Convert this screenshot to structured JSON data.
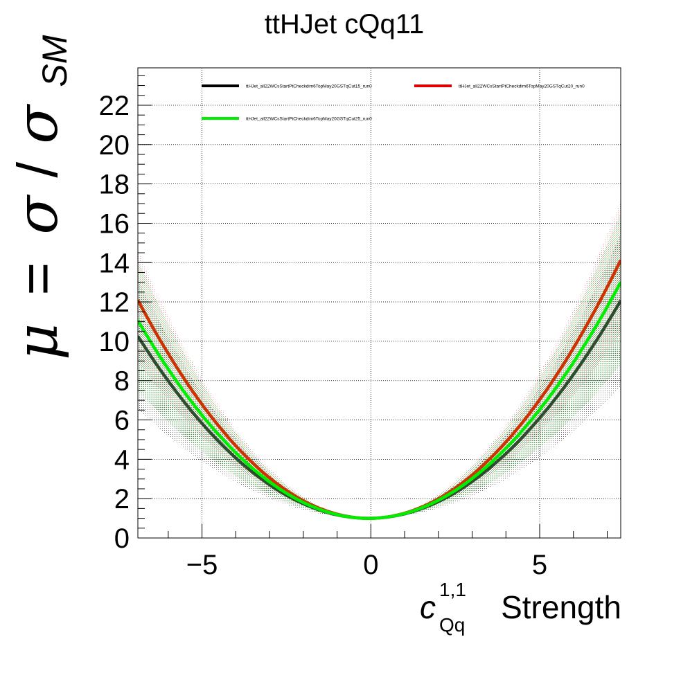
{
  "chart_data": {
    "type": "line",
    "title": "ttHJet cQq11",
    "xlabel": {
      "symbol": "c",
      "superscript": "1,1",
      "subscript": "Qq",
      "text": "Strength"
    },
    "ylabel": {
      "mu": "μ",
      "equals": "=",
      "sigma": "σ",
      "slash": "/",
      "sigma2": "σ",
      "subscript": "SM"
    },
    "xlim": [
      -6.9,
      7.4
    ],
    "ylim": [
      0,
      23.9
    ],
    "x_ticks": [
      {
        "value": -5,
        "label": "−5"
      },
      {
        "value": 0,
        "label": "0"
      },
      {
        "value": 5,
        "label": "5"
      }
    ],
    "y_ticks": [
      {
        "value": 0,
        "label": "0"
      },
      {
        "value": 2,
        "label": "2"
      },
      {
        "value": 4,
        "label": "4"
      },
      {
        "value": 6,
        "label": "6"
      },
      {
        "value": 8,
        "label": "8"
      },
      {
        "value": 10,
        "label": "10"
      },
      {
        "value": 12,
        "label": "12"
      },
      {
        "value": 14,
        "label": "14"
      },
      {
        "value": 16,
        "label": "16"
      },
      {
        "value": 18,
        "label": "18"
      },
      {
        "value": 20,
        "label": "20"
      },
      {
        "value": 22,
        "label": "22"
      }
    ],
    "grid": true,
    "legend_position": "top",
    "series": [
      {
        "name": "ttHJet_all22WCsStartPtCheckdim6TopMay20GSTqCut15_run0",
        "color": "#2e4d2e",
        "band_color": "#000000",
        "coefficients": [
          1.0,
          0.0275,
          0.1985
        ],
        "band_min": [
          1.0,
          0.02,
          0.12
        ],
        "band_max": [
          1.0,
          0.03,
          0.26
        ]
      },
      {
        "name": "ttHJet_all22WCsStartPtCheckdim6TopMay20GSTqCut20_run0",
        "color": "#cc3300",
        "band_color": "#e8a0a8",
        "coefficients": [
          1.0,
          0.024,
          0.2365
        ],
        "band_min": [
          1.0,
          0.02,
          0.17
        ],
        "band_max": [
          1.0,
          0.03,
          0.29
        ]
      },
      {
        "name": "ttHJet_all22WCsStartPtCheckdim6TopMay20GSTqCut25_run0",
        "color": "#00ee00",
        "band_color": "#66dd66",
        "coefficients": [
          1.0,
          0.0285,
          0.2154
        ],
        "band_min": [
          1.0,
          0.02,
          0.14
        ],
        "band_max": [
          1.0,
          0.03,
          0.28
        ]
      }
    ]
  }
}
